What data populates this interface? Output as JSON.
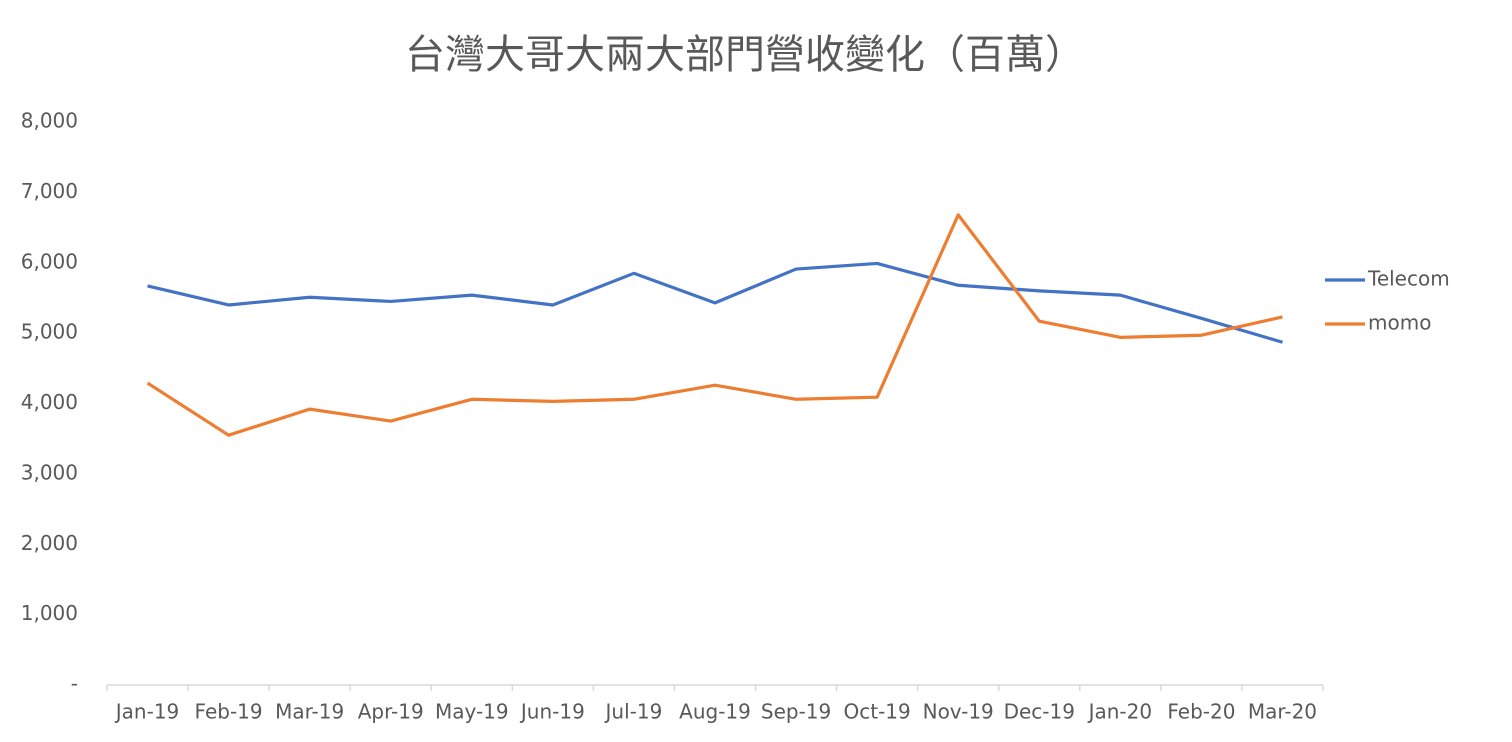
{
  "chart_data": {
    "type": "line",
    "title": "台灣大哥大兩大部門營收變化（百萬）",
    "categories": [
      "Jan-19",
      "Feb-19",
      "Mar-19",
      "Apr-19",
      "May-19",
      "Jun-19",
      "Jul-19",
      "Aug-19",
      "Sep-19",
      "Oct-19",
      "Nov-19",
      "Dec-19",
      "Jan-20",
      "Feb-20",
      "Mar-20"
    ],
    "series": [
      {
        "name": "Telecom",
        "color": "#4472c4",
        "values": [
          5670,
          5400,
          5510,
          5450,
          5540,
          5400,
          5850,
          5430,
          5910,
          5990,
          5680,
          5600,
          5540,
          5210,
          4870
        ]
      },
      {
        "name": "momo",
        "color": "#ed7d31",
        "values": [
          4290,
          3550,
          3920,
          3750,
          4060,
          4030,
          4060,
          4260,
          4060,
          4090,
          6680,
          5170,
          4940,
          4970,
          5230
        ]
      }
    ],
    "ylim": [
      0,
      8000
    ],
    "yticks": [
      {
        "value": 0,
        "label": "-"
      },
      {
        "value": 1000,
        "label": "1,000"
      },
      {
        "value": 2000,
        "label": "2,000"
      },
      {
        "value": 3000,
        "label": "3,000"
      },
      {
        "value": 4000,
        "label": "4,000"
      },
      {
        "value": 5000,
        "label": "5,000"
      },
      {
        "value": 6000,
        "label": "6,000"
      },
      {
        "value": 7000,
        "label": "7,000"
      },
      {
        "value": 8000,
        "label": "8,000"
      }
    ],
    "grid": false,
    "legend": "right"
  }
}
